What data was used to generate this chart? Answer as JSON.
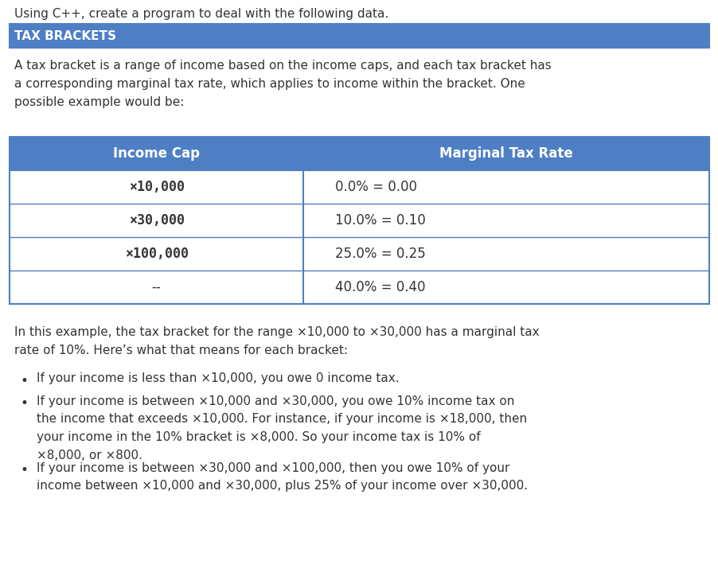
{
  "bg_color": "#ffffff",
  "header_bg": "#4e7fc4",
  "header_text_color": "#ffffff",
  "header_label": "TAX BRACKETS",
  "table_border_color": "#4e7fc4",
  "table_header_cols": [
    "Income Cap",
    "Marginal Tax Rate"
  ],
  "table_rows": [
    [
      "×10,000",
      "0.0% = 0.00"
    ],
    [
      "×30,000",
      "10.0% = 0.10"
    ],
    [
      "×100,000",
      "25.0% = 0.25"
    ],
    [
      "--",
      "40.0% = 0.40"
    ]
  ],
  "intro_text": "A tax bracket is a range of income based on the income caps, and each tax bracket has\na corresponding marginal tax rate, which applies to income within the bracket. One\npossible example would be:",
  "body_text": "In this example, the tax bracket for the range ×10,000 to ×30,000 has a marginal tax\nrate of 10%. Here’s what that means for each bracket:",
  "bullets": [
    "If your income is less than ×10,000, you owe 0 income tax.",
    "If your income is between ×10,000 and ×30,000, you owe 10% income tax on\nthe income that exceeds ×10,000. For instance, if your income is ×18,000, then\nyour income in the 10% bracket is ×8,000. So your income tax is 10% of\n×8,000, or ×800.",
    "If your income is between ×30,000 and ×100,000, then you owe 10% of your\nincome between ×10,000 and ×30,000, plus 25% of your income over ×30,000."
  ],
  "top_text": "Using C++, create a program to deal with the following data.",
  "text_color": "#333333",
  "font_family": "DejaVu Sans",
  "monospace_family": "DejaVu Sans Mono",
  "fig_width": 9.03,
  "fig_height": 7.29,
  "dpi": 100
}
